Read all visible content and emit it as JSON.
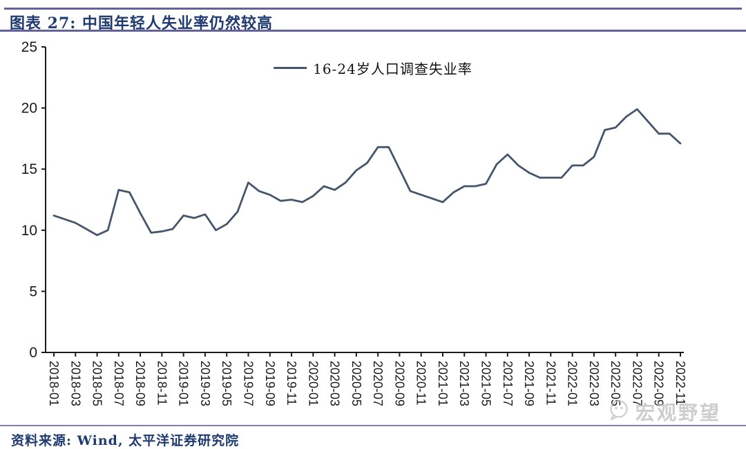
{
  "header": {
    "title": "图表 27: 中国年轻人失业率仍然较高"
  },
  "legend": {
    "label": "16-24岁人口调查失业率"
  },
  "footer": {
    "source": "资料来源: Wind, 太平洋证券研究院"
  },
  "watermark": {
    "label": "宏观野望",
    "icon": "wechat-icon"
  },
  "chart_data": {
    "type": "line",
    "title": "图表 27: 中国年轻人失业率仍然较高",
    "ylabel": "",
    "xlabel": "",
    "ylim": [
      0,
      25
    ],
    "yticks": [
      0,
      5,
      10,
      15,
      20,
      25
    ],
    "grid": false,
    "legend_position": "top-center",
    "line_color": "#44546A",
    "axis_color": "#1a1a1a",
    "x": [
      "2018-01",
      "2018-02",
      "2018-03",
      "2018-04",
      "2018-05",
      "2018-06",
      "2018-07",
      "2018-08",
      "2018-09",
      "2018-10",
      "2018-11",
      "2018-12",
      "2019-01",
      "2019-02",
      "2019-03",
      "2019-04",
      "2019-05",
      "2019-06",
      "2019-07",
      "2019-08",
      "2019-09",
      "2019-10",
      "2019-11",
      "2019-12",
      "2020-01",
      "2020-02",
      "2020-03",
      "2020-04",
      "2020-05",
      "2020-06",
      "2020-07",
      "2020-08",
      "2020-09",
      "2020-10",
      "2020-11",
      "2020-12",
      "2021-01",
      "2021-02",
      "2021-03",
      "2021-04",
      "2021-05",
      "2021-06",
      "2021-07",
      "2021-08",
      "2021-09",
      "2021-10",
      "2021-11",
      "2021-12",
      "2022-01",
      "2022-02",
      "2022-03",
      "2022-04",
      "2022-05",
      "2022-06",
      "2022-07",
      "2022-08",
      "2022-09",
      "2022-10",
      "2022-11"
    ],
    "x_tick_every": 2,
    "series": [
      {
        "name": "16-24岁人口调查失业率",
        "values": [
          11.2,
          10.9,
          10.6,
          10.1,
          9.6,
          10.0,
          13.3,
          13.1,
          11.4,
          9.8,
          9.9,
          10.1,
          11.2,
          11.0,
          11.3,
          10.0,
          10.5,
          11.5,
          13.9,
          13.2,
          12.9,
          12.4,
          12.5,
          12.3,
          12.8,
          13.6,
          13.3,
          13.9,
          14.9,
          15.5,
          16.8,
          16.8,
          15.0,
          13.2,
          12.9,
          12.6,
          12.3,
          13.1,
          13.6,
          13.6,
          13.8,
          15.4,
          16.2,
          15.3,
          14.7,
          14.3,
          14.3,
          14.3,
          15.3,
          15.3,
          16.0,
          18.2,
          18.4,
          19.3,
          19.9,
          18.9,
          17.9,
          17.9,
          17.1
        ]
      }
    ]
  }
}
